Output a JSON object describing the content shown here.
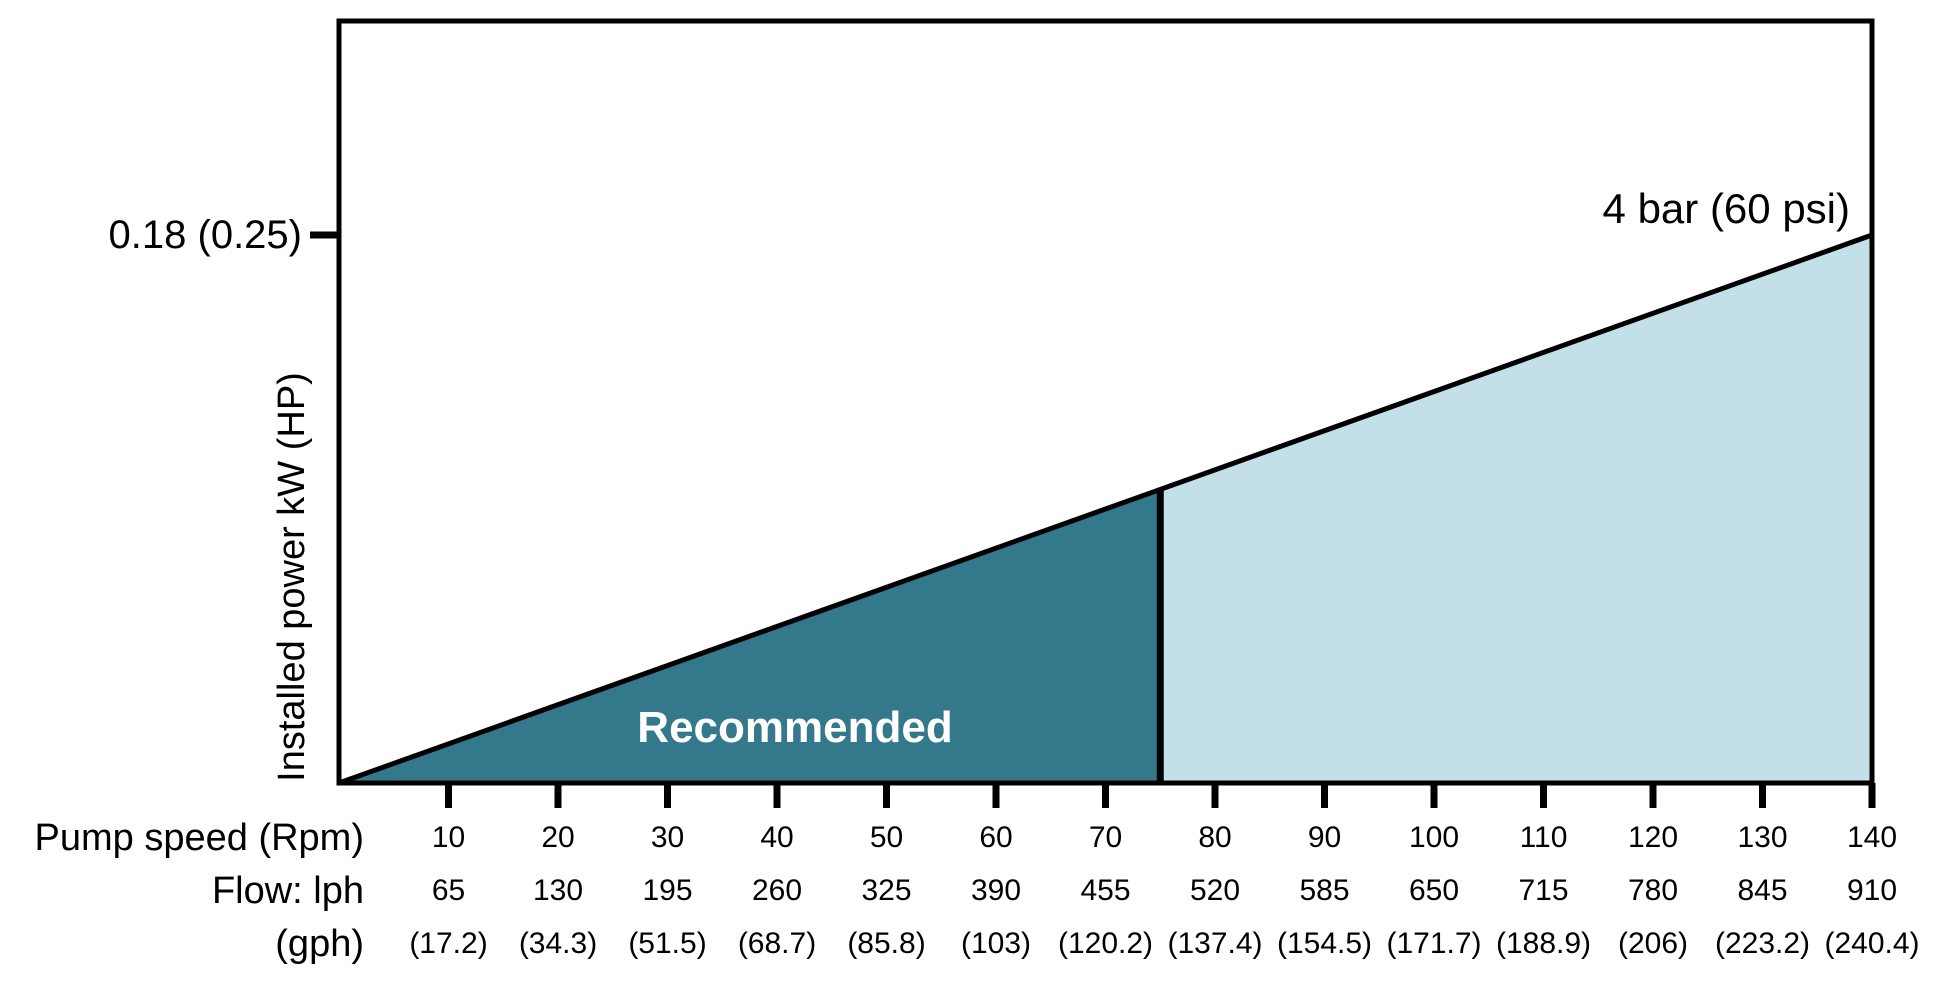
{
  "chart_data": {
    "type": "area",
    "description": "Pump installed power vs pump speed and flow, 4 bar pressure line with recommended operating region",
    "x_axis": {
      "row_labels": [
        "Pump speed (Rpm)",
        "Flow: lph",
        "(gph)"
      ],
      "rpm_ticks": [
        10,
        20,
        30,
        40,
        50,
        60,
        70,
        80,
        90,
        100,
        110,
        120,
        130,
        140
      ],
      "rpm_labels": [
        "10",
        "20",
        "30",
        "40",
        "50",
        "60",
        "70",
        "80",
        "90",
        "100",
        "110",
        "120",
        "130",
        "140"
      ],
      "flow_lph_labels": [
        "65",
        "130",
        "195",
        "260",
        "325",
        "390",
        "455",
        "520",
        "585",
        "650",
        "715",
        "780",
        "845",
        "910"
      ],
      "flow_gph_labels": [
        "(17.2)",
        "(34.3)",
        "(51.5)",
        "(68.7)",
        "(85.8)",
        "(103)",
        "(120.2)",
        "(137.4)",
        "(154.5)",
        "(171.7)",
        "(188.9)",
        "(206)",
        "(223.2)",
        "(240.4)"
      ],
      "rpm_range": [
        0,
        140
      ]
    },
    "y_axis": {
      "axis_label": "Installed power kW (HP)",
      "tick_label": "0.18 (0.25)",
      "tick_kw": 0.18,
      "kw_range": [
        0,
        0.18
      ]
    },
    "pressure_line": {
      "label": "4 bar (60 psi)",
      "start": {
        "rpm": 0,
        "kw": 0
      },
      "end": {
        "rpm": 140,
        "kw": 0.18
      }
    },
    "regions": [
      {
        "id": "recommended",
        "label": "Recommended",
        "rpm_start": 0,
        "rpm_end": 75,
        "fill": "#33798b",
        "label_color": "#ffffff"
      },
      {
        "id": "above-recommended",
        "label": "",
        "rpm_start": 75,
        "rpm_end": 140,
        "fill": "#c3e0e9"
      }
    ],
    "colors": {
      "recommended_region": "#33798b",
      "upper_region": "#c3e0e9",
      "line": "#000000",
      "text": "#000000",
      "region_label_text": "#ffffff",
      "background": "#ffffff"
    },
    "layout_hints": {
      "grid": false,
      "legend": "none"
    }
  }
}
